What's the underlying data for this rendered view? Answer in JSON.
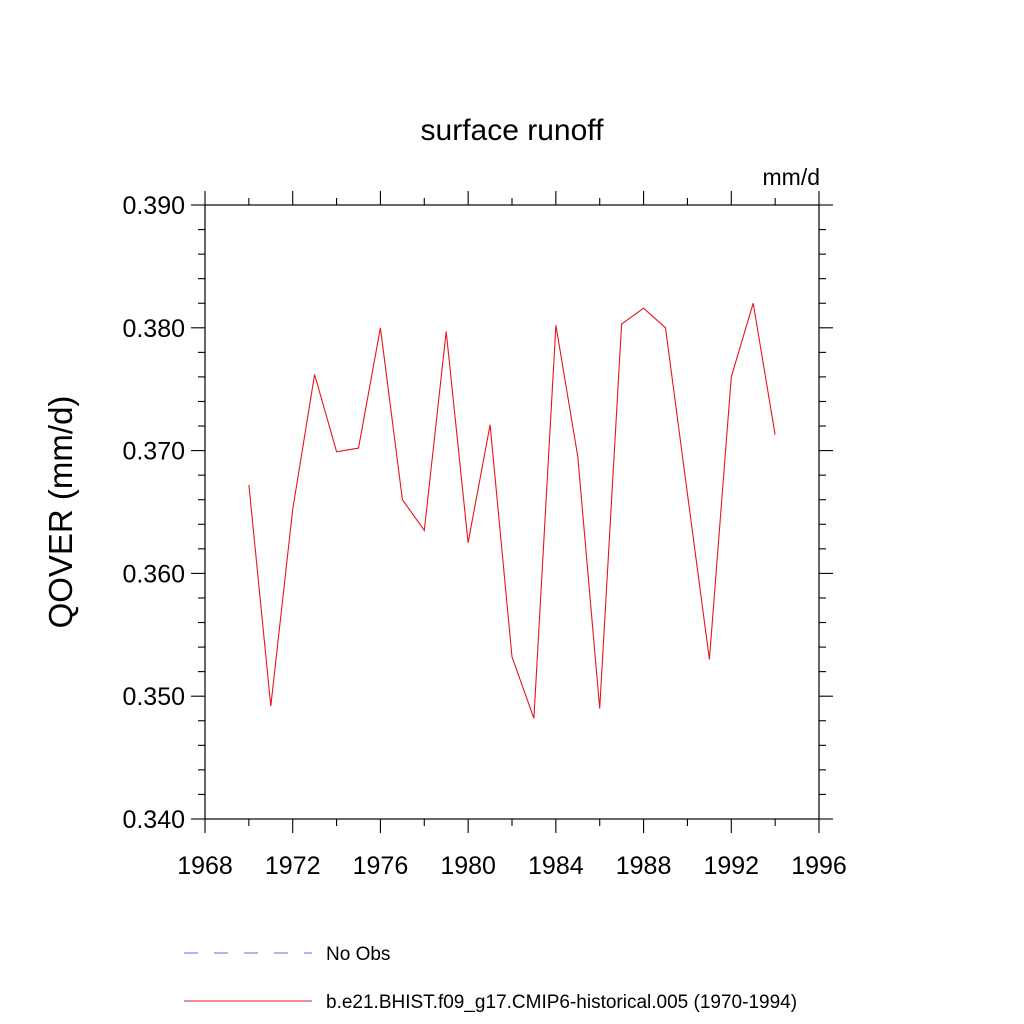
{
  "chart_data": {
    "type": "line",
    "title": "surface runoff",
    "units_label": "mm/d",
    "ylabel": "QOVER  (mm/d)",
    "xlabel": "",
    "xlim": [
      1968,
      1996
    ],
    "ylim": [
      0.34,
      0.39
    ],
    "x_ticks": [
      1968,
      1972,
      1976,
      1980,
      1984,
      1988,
      1992,
      1996
    ],
    "y_ticks": [
      "0.340",
      "0.350",
      "0.360",
      "0.370",
      "0.380",
      "0.390"
    ],
    "grid": false,
    "series": [
      {
        "name": "b.e21.BHIST.f09_g17.CMIP6-historical.005 (1970-1994)",
        "color": "#e8141a",
        "x": [
          1970,
          1971,
          1972,
          1973,
          1974,
          1975,
          1976,
          1977,
          1978,
          1979,
          1980,
          1981,
          1982,
          1983,
          1984,
          1985,
          1986,
          1987,
          1988,
          1989,
          1990,
          1991,
          1992,
          1993,
          1994
        ],
        "values": [
          0.3672,
          0.3492,
          0.3652,
          0.3762,
          0.3699,
          0.3702,
          0.38,
          0.366,
          0.3635,
          0.3797,
          0.3625,
          0.3721,
          0.3532,
          0.3482,
          0.3802,
          0.3695,
          0.349,
          0.3803,
          0.3816,
          0.38,
          0.3665,
          0.353,
          0.376,
          0.382,
          0.3713
        ]
      }
    ],
    "legend": [
      {
        "label": "No Obs",
        "style": "dashed",
        "color": "#6b6bd6"
      },
      {
        "label": "b.e21.BHIST.f09_g17.CMIP6-historical.005 (1970-1994)",
        "style": "solid",
        "color": "#e8141a"
      }
    ]
  }
}
